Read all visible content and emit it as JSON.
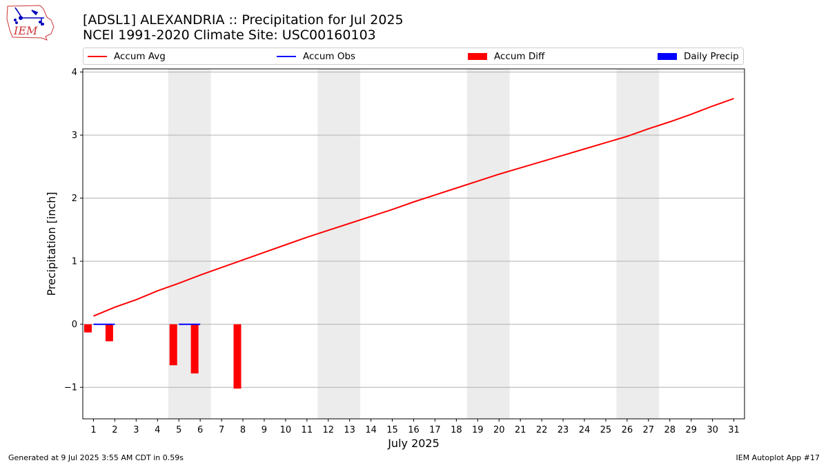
{
  "title_line1": "[ADSL1] ALEXANDRIA :: Precipitation for Jul 2025",
  "title_line2": "NCEI 1991-2020 Climate Site: USC00160103",
  "logo_text": "IEM",
  "footer_left": "Generated at 9 Jul 2025 3:55 AM CDT in 0.59s",
  "footer_right": "IEM Autoplot App #17",
  "legend": [
    {
      "label": "Accum Avg",
      "kind": "line",
      "color": "#ff0000"
    },
    {
      "label": "Accum Obs",
      "kind": "line",
      "color": "#0000ff"
    },
    {
      "label": "Accum Diff",
      "kind": "box",
      "color": "#ff0000"
    },
    {
      "label": "Daily Precip",
      "kind": "box",
      "color": "#0000ff"
    }
  ],
  "chart_data": {
    "type": "line",
    "xlabel": "July 2025",
    "ylabel": "Precipitation [inch]",
    "xlim": [
      0.5,
      31.5
    ],
    "ylim": [
      -1.5,
      4.05
    ],
    "yticks": [
      -1,
      0,
      1,
      2,
      3,
      4
    ],
    "ytick_labels": [
      "−1",
      "0",
      "1",
      "2",
      "3",
      "4"
    ],
    "x": [
      1,
      2,
      3,
      4,
      5,
      6,
      7,
      8,
      9,
      10,
      11,
      12,
      13,
      14,
      15,
      16,
      17,
      18,
      19,
      20,
      21,
      22,
      23,
      24,
      25,
      26,
      27,
      28,
      29,
      30,
      31
    ],
    "weekend_bands": [
      [
        4.5,
        6.5
      ],
      [
        11.5,
        13.5
      ],
      [
        18.5,
        20.5
      ],
      [
        25.5,
        27.5
      ]
    ],
    "grid": "horizontal",
    "series": [
      {
        "name": "Accum Avg",
        "type": "line",
        "color": "#ff0000",
        "x": [
          1,
          2,
          3,
          4,
          5,
          6,
          7,
          8,
          9,
          10,
          11,
          12,
          13,
          14,
          15,
          16,
          17,
          18,
          19,
          20,
          21,
          22,
          23,
          24,
          25,
          26,
          27,
          28,
          29,
          30,
          31
        ],
        "values": [
          0.13,
          0.27,
          0.39,
          0.53,
          0.65,
          0.78,
          0.9,
          1.02,
          1.14,
          1.26,
          1.38,
          1.49,
          1.6,
          1.71,
          1.82,
          1.94,
          2.05,
          2.16,
          2.27,
          2.38,
          2.48,
          2.58,
          2.68,
          2.78,
          2.88,
          2.98,
          3.1,
          3.21,
          3.33,
          3.46,
          3.58
        ]
      },
      {
        "name": "Accum Obs",
        "type": "line",
        "color": "#0000ff",
        "x": [
          1,
          2,
          3,
          4,
          5,
          6,
          7,
          8
        ],
        "values": [
          0,
          0,
          0,
          0,
          0,
          0,
          0,
          0
        ]
      },
      {
        "name": "Accum Diff",
        "type": "bar",
        "color": "#ff0000",
        "x": [
          1,
          2,
          5,
          6,
          8
        ],
        "values": [
          -0.13,
          -0.27,
          -0.65,
          -0.78,
          -1.02
        ]
      },
      {
        "name": "Daily Precip",
        "type": "bar",
        "color": "#0000ff",
        "x": [],
        "values": []
      }
    ]
  }
}
